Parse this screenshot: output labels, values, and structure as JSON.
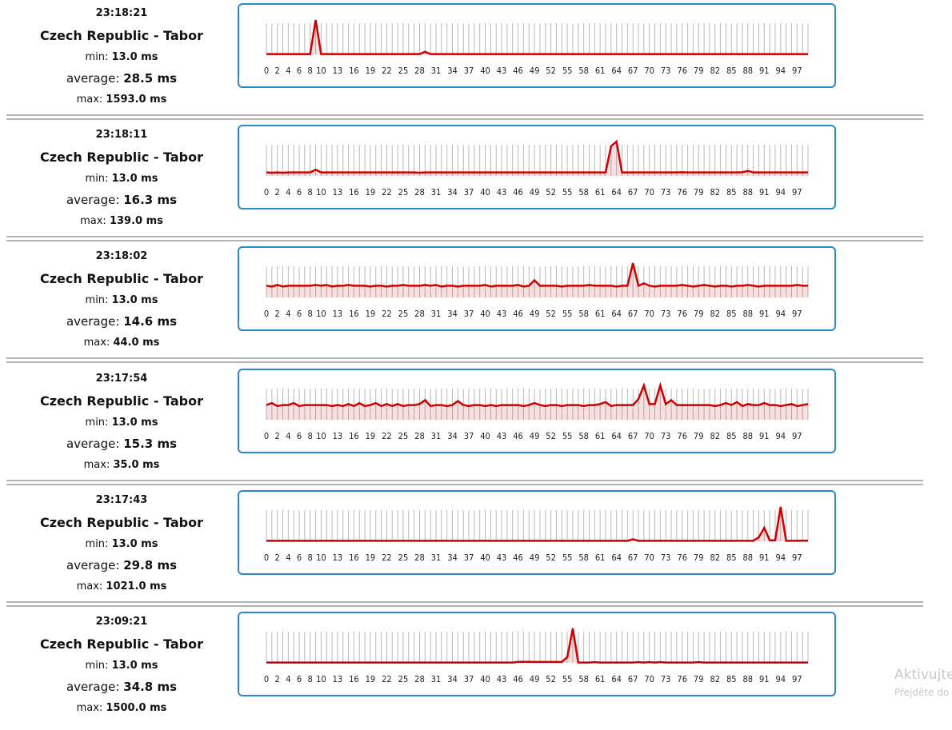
{
  "categories": [
    0,
    null,
    2,
    null,
    4,
    null,
    6,
    null,
    8,
    null,
    10,
    null,
    null,
    13,
    null,
    null,
    16,
    null,
    null,
    19,
    null,
    null,
    22,
    null,
    null,
    25,
    null,
    null,
    28,
    null,
    null,
    31,
    null,
    null,
    34,
    null,
    null,
    37,
    null,
    null,
    40,
    null,
    null,
    43,
    null,
    null,
    46,
    null,
    null,
    49,
    null,
    null,
    52,
    null,
    null,
    55,
    null,
    null,
    58,
    null,
    null,
    61,
    null,
    null,
    64,
    null,
    null,
    67,
    null,
    null,
    70,
    null,
    null,
    73,
    null,
    null,
    76,
    null,
    null,
    79,
    null,
    null,
    82,
    null,
    null,
    85,
    null,
    null,
    88,
    null,
    null,
    91,
    null,
    null,
    94,
    null,
    null,
    97,
    null,
    null
  ],
  "rows": [
    {
      "time": "23:18:21",
      "location": "Czech Republic - Tabor",
      "min_label": "min:",
      "min": "13.0 ms",
      "average_label": "average:",
      "average": "28.5 ms",
      "max_label": "max:",
      "max": "1593.0 ms",
      "chart": {
        "type": "line",
        "color": "#cc0000",
        "ylim": [
          0,
          1593
        ],
        "values": [
          13,
          13,
          14,
          13,
          13,
          13,
          13,
          13,
          13,
          1593,
          13,
          13,
          13,
          13,
          14,
          13,
          13,
          13,
          13,
          13,
          13,
          13,
          13,
          14,
          13,
          13,
          13,
          13,
          13,
          120,
          13,
          13,
          13,
          13,
          13,
          13,
          13,
          13,
          14,
          13,
          13,
          13,
          13,
          13,
          13,
          13,
          13,
          13,
          13,
          13,
          13,
          13,
          13,
          13,
          13,
          13,
          13,
          13,
          13,
          13,
          13,
          13,
          13,
          13,
          13,
          13,
          13,
          14,
          13,
          13,
          13,
          13,
          13,
          13,
          13,
          13,
          13,
          13,
          13,
          13,
          13,
          13,
          13,
          13,
          13,
          13,
          13,
          13,
          13,
          13,
          13,
          13,
          13,
          13,
          13,
          13,
          13,
          13,
          13,
          13
        ]
      }
    },
    {
      "time": "23:18:11",
      "location": "Czech Republic - Tabor",
      "min_label": "min:",
      "min": "13.0 ms",
      "average_label": "average:",
      "average": "16.3 ms",
      "max_label": "max:",
      "max": "139.0 ms",
      "chart": {
        "type": "line",
        "color": "#cc0000",
        "ylim": [
          0,
          139
        ],
        "values": [
          14,
          13,
          14,
          13,
          14,
          14,
          14,
          14,
          14,
          25,
          14,
          14,
          14,
          14,
          14,
          14,
          14,
          14,
          14,
          14,
          14,
          14,
          14,
          14,
          14,
          14,
          14,
          14,
          13,
          14,
          14,
          14,
          14,
          14,
          14,
          14,
          14,
          14,
          14,
          14,
          14,
          14,
          14,
          14,
          14,
          14,
          14,
          14,
          14,
          14,
          14,
          14,
          14,
          14,
          14,
          14,
          14,
          14,
          14,
          14,
          14,
          14,
          14,
          120,
          139,
          14,
          14,
          14,
          14,
          14,
          14,
          14,
          14,
          14,
          14,
          14,
          15,
          14,
          14,
          14,
          14,
          14,
          14,
          14,
          14,
          14,
          14,
          15,
          20,
          14,
          14,
          14,
          14,
          14,
          14,
          14,
          14,
          14,
          14,
          14
        ]
      }
    },
    {
      "time": "23:18:02",
      "location": "Czech Republic - Tabor",
      "min_label": "min:",
      "min": "13.0 ms",
      "average_label": "average:",
      "average": "14.6 ms",
      "max_label": "max:",
      "max": "44.0 ms",
      "chart": {
        "type": "line",
        "color": "#cc0000",
        "ylim": [
          0,
          44
        ],
        "values": [
          15,
          14,
          16,
          14,
          15,
          15,
          15,
          15,
          15,
          16,
          15,
          16,
          14,
          15,
          15,
          16,
          15,
          15,
          15,
          14,
          15,
          15,
          14,
          15,
          15,
          16,
          15,
          15,
          15,
          16,
          15,
          16,
          14,
          15,
          15,
          14,
          15,
          15,
          15,
          15,
          16,
          14,
          15,
          15,
          15,
          15,
          16,
          14,
          15,
          22,
          15,
          15,
          15,
          15,
          14,
          15,
          15,
          15,
          15,
          16,
          15,
          15,
          15,
          15,
          14,
          15,
          15,
          44,
          15,
          18,
          15,
          14,
          15,
          15,
          15,
          15,
          16,
          15,
          14,
          15,
          16,
          15,
          14,
          15,
          15,
          14,
          15,
          15,
          16,
          15,
          14,
          15,
          15,
          15,
          15,
          15,
          15,
          16,
          15,
          15
        ]
      }
    },
    {
      "time": "23:17:54",
      "location": "Czech Republic - Tabor",
      "min_label": "min:",
      "min": "13.0 ms",
      "average_label": "average:",
      "average": "15.3 ms",
      "max_label": "max:",
      "max": "35.0 ms",
      "chart": {
        "type": "line",
        "color": "#cc0000",
        "ylim": [
          0,
          35
        ],
        "values": [
          15,
          17,
          14,
          15,
          15,
          17,
          14,
          15,
          15,
          15,
          15,
          15,
          14,
          15,
          14,
          16,
          14,
          17,
          14,
          15,
          17,
          14,
          16,
          14,
          16,
          14,
          15,
          15,
          16,
          20,
          14,
          15,
          15,
          14,
          15,
          19,
          15,
          14,
          15,
          15,
          14,
          15,
          14,
          15,
          15,
          15,
          15,
          14,
          15,
          17,
          15,
          14,
          15,
          15,
          14,
          15,
          15,
          15,
          14,
          15,
          15,
          16,
          18,
          14,
          15,
          15,
          15,
          15,
          21,
          35,
          16,
          16,
          35,
          16,
          20,
          15,
          15,
          15,
          15,
          15,
          15,
          15,
          14,
          15,
          17,
          15,
          18,
          14,
          16,
          15,
          15,
          17,
          15,
          15,
          14,
          15,
          16,
          14,
          15,
          16
        ]
      }
    },
    {
      "time": "23:17:43",
      "location": "Czech Republic - Tabor",
      "min_label": "min:",
      "min": "13.0 ms",
      "average_label": "average:",
      "average": "29.8 ms",
      "max_label": "max:",
      "max": "1021.0 ms",
      "chart": {
        "type": "line",
        "color": "#cc0000",
        "ylim": [
          0,
          1021
        ],
        "values": [
          14,
          15,
          14,
          14,
          14,
          14,
          14,
          14,
          14,
          14,
          14,
          14,
          14,
          14,
          14,
          14,
          14,
          14,
          14,
          14,
          14,
          14,
          14,
          14,
          14,
          14,
          14,
          14,
          14,
          14,
          14,
          14,
          14,
          14,
          14,
          14,
          14,
          14,
          14,
          14,
          14,
          14,
          14,
          14,
          14,
          14,
          14,
          14,
          14,
          14,
          14,
          14,
          14,
          14,
          14,
          14,
          14,
          14,
          14,
          14,
          14,
          14,
          14,
          14,
          14,
          14,
          14,
          60,
          14,
          14,
          14,
          14,
          14,
          14,
          14,
          14,
          14,
          14,
          14,
          14,
          14,
          14,
          14,
          14,
          14,
          14,
          14,
          14,
          14,
          15,
          120,
          400,
          30,
          30,
          1021,
          14,
          14,
          14,
          20,
          14
        ]
      }
    },
    {
      "time": "23:09:21",
      "location": "Czech Republic - Tabor",
      "min_label": "min:",
      "min": "13.0 ms",
      "average_label": "average:",
      "average": "34.8 ms",
      "max_label": "max:",
      "max": "1500.0 ms",
      "chart": {
        "type": "line",
        "color": "#cc0000",
        "ylim": [
          0,
          1500
        ],
        "values": [
          14,
          14,
          14,
          14,
          14,
          14,
          14,
          14,
          14,
          14,
          14,
          14,
          14,
          14,
          14,
          14,
          14,
          14,
          14,
          14,
          14,
          14,
          14,
          14,
          14,
          14,
          14,
          14,
          14,
          14,
          14,
          14,
          14,
          14,
          14,
          14,
          14,
          14,
          14,
          14,
          14,
          14,
          14,
          14,
          14,
          14,
          40,
          45,
          45,
          40,
          40,
          40,
          40,
          40,
          40,
          244,
          1500,
          14,
          14,
          14,
          30,
          14,
          14,
          14,
          14,
          14,
          14,
          14,
          30,
          14,
          30,
          14,
          30,
          14,
          14,
          14,
          14,
          14,
          14,
          30,
          14,
          14,
          14,
          14,
          14,
          14,
          14,
          14,
          14,
          14,
          14,
          14,
          14,
          14,
          14,
          14,
          14,
          14,
          14,
          14
        ]
      }
    }
  ],
  "watermark": [
    "Aktivujte",
    "Přejděte do"
  ]
}
